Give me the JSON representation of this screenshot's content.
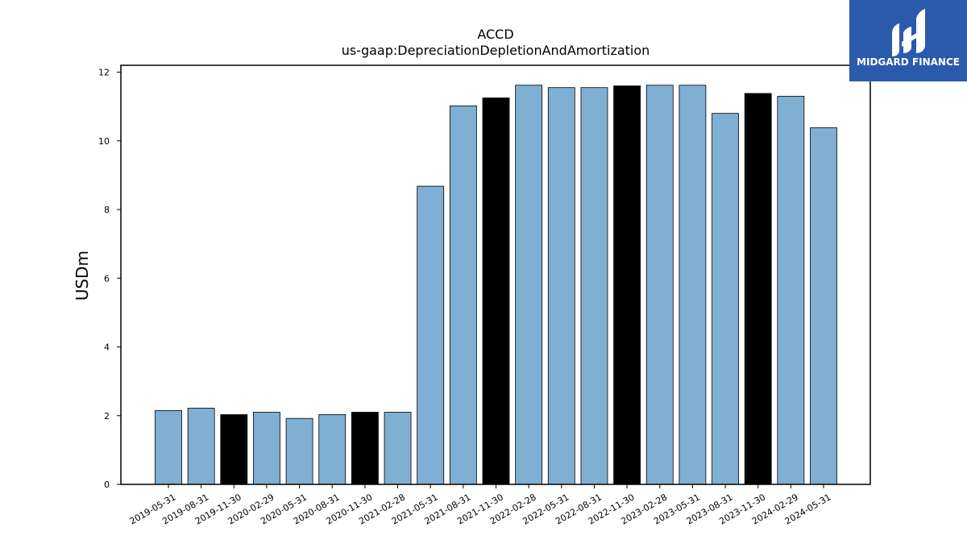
{
  "chart_data": {
    "type": "bar",
    "title": "ACCD",
    "subtitle": "us-gaap:DepreciationDepletionAndAmortization",
    "xlabel": "",
    "ylabel": "USDm",
    "ylim": [
      0,
      12.2
    ],
    "yticks": [
      0,
      2,
      4,
      6,
      8,
      10,
      12
    ],
    "categories": [
      "2019-05-31",
      "2019-08-31",
      "2019-11-30",
      "2020-02-29",
      "2020-05-31",
      "2020-08-31",
      "2020-11-30",
      "2021-02-28",
      "2021-05-31",
      "2021-08-31",
      "2021-11-30",
      "2022-02-28",
      "2022-05-31",
      "2022-08-31",
      "2022-11-30",
      "2023-02-28",
      "2023-05-31",
      "2023-08-31",
      "2023-11-30",
      "2024-02-29",
      "2024-05-31"
    ],
    "values": [
      2.15,
      2.22,
      2.03,
      2.1,
      1.92,
      2.03,
      2.1,
      2.1,
      8.68,
      11.02,
      11.25,
      11.62,
      11.55,
      11.55,
      11.6,
      11.62,
      11.62,
      10.8,
      11.38,
      11.3,
      10.38
    ],
    "highlighted": [
      false,
      false,
      true,
      false,
      false,
      false,
      true,
      false,
      false,
      false,
      true,
      false,
      false,
      false,
      true,
      false,
      false,
      false,
      true,
      false,
      false
    ],
    "colors": {
      "bar": "#7fafd3",
      "highlight": "#000000",
      "edge": "#000000"
    },
    "grid": false,
    "legend": "none"
  },
  "logo": {
    "text": "MIDGARD FINANCE",
    "background": "#2b5aad",
    "icon": "midgard-logo-icon"
  }
}
